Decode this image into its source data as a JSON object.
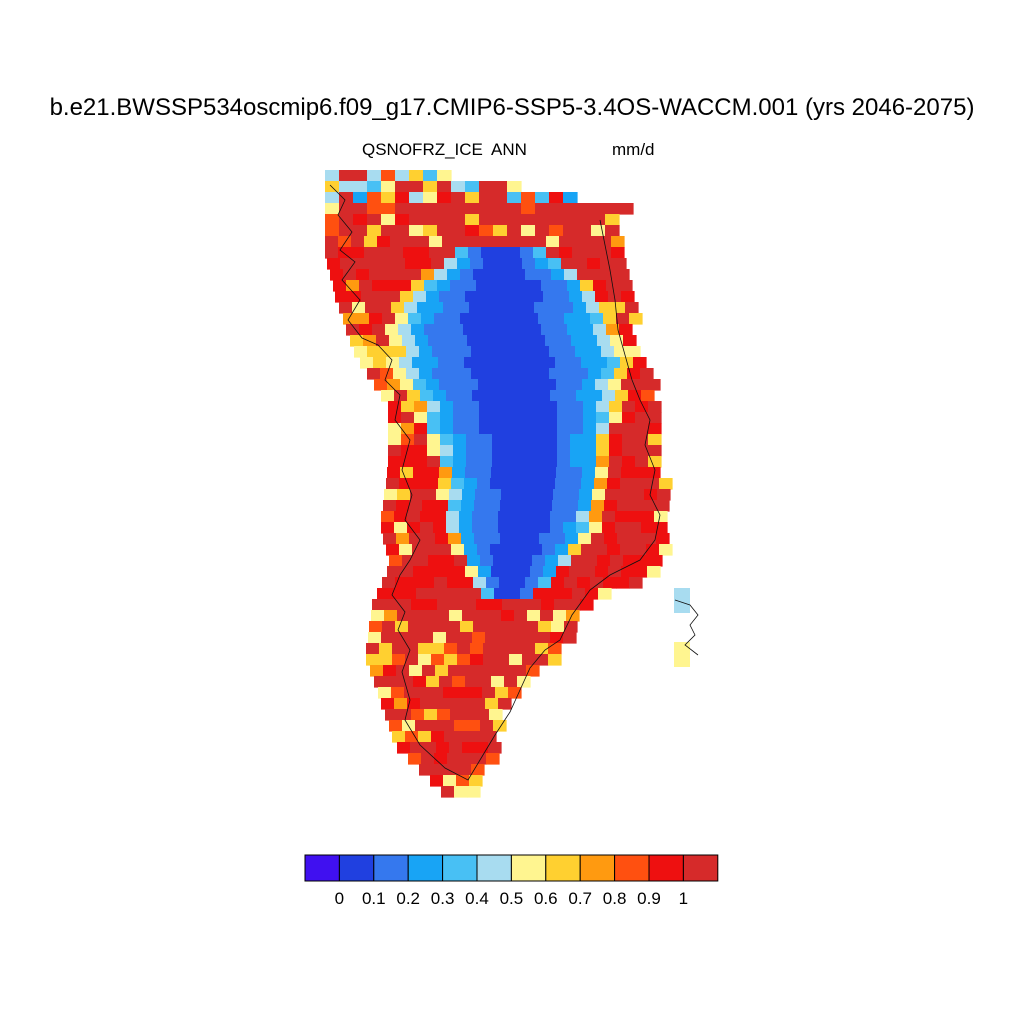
{
  "header": {
    "title": "b.e21.BWSSP534oscmip6.f09_g17.CMIP6-SSP5-3.4OS-WACCM.001 (yrs 2046-2075)",
    "variable": "QSNOFRZ_ICE",
    "season": "ANN",
    "units": "mm/d"
  },
  "colorbar": {
    "colors": [
      "#4010f0",
      "#2040e0",
      "#3578ee",
      "#18a4f5",
      "#48c0f4",
      "#a8dcf0",
      "#fff590",
      "#ffd030",
      "#ff9a10",
      "#ff5010",
      "#ee1010",
      "#d62a2a"
    ],
    "tick_labels": [
      "0",
      "0.1",
      "0.2",
      "0.3",
      "0.4",
      "0.5",
      "0.6",
      "0.7",
      "0.8",
      "0.9",
      "1"
    ]
  }
}
